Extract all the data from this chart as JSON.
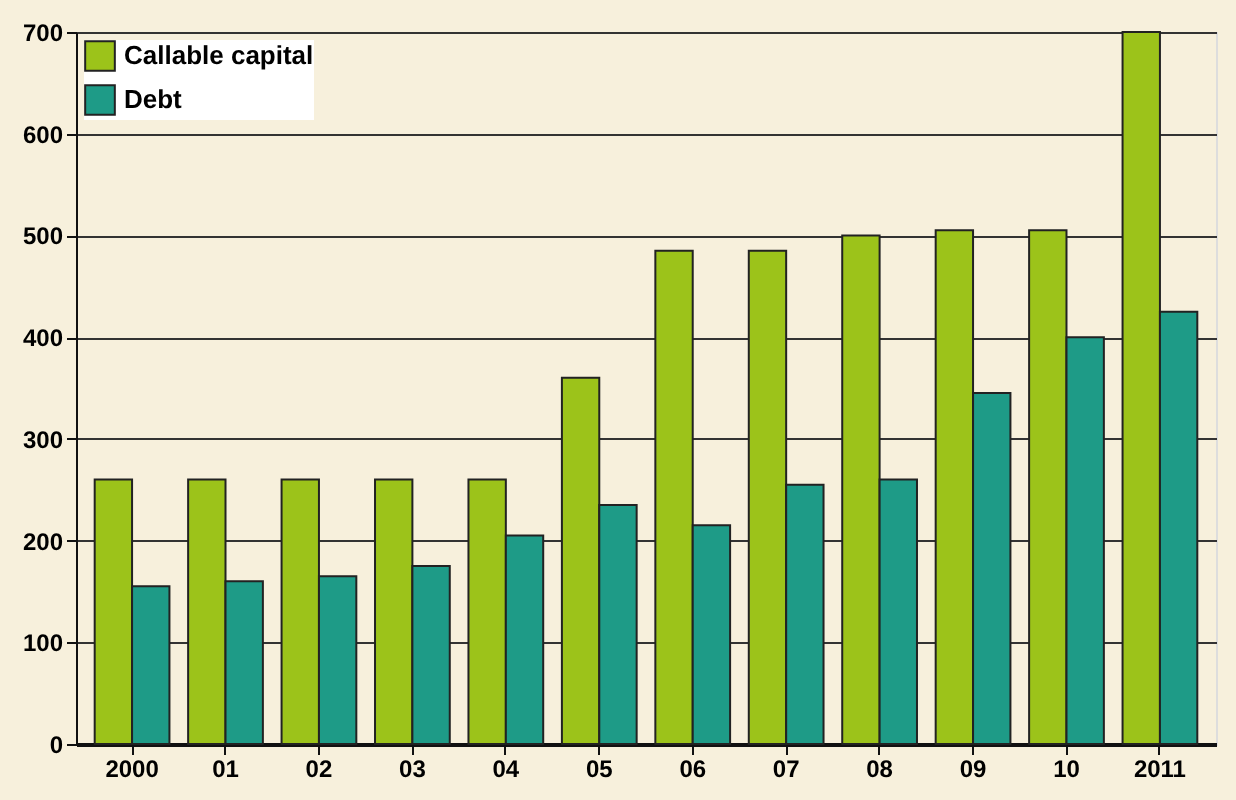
{
  "chart_data": {
    "type": "bar",
    "categories": [
      "2000",
      "01",
      "02",
      "03",
      "04",
      "05",
      "06",
      "07",
      "08",
      "09",
      "10",
      "2011"
    ],
    "series": [
      {
        "name": "Callable capital",
        "color": "#9cc31a",
        "values": [
          260,
          260,
          260,
          260,
          260,
          360,
          485,
          485,
          500,
          505,
          505,
          700
        ]
      },
      {
        "name": "Debt",
        "color": "#1e9b87",
        "values": [
          155,
          160,
          165,
          175,
          205,
          235,
          215,
          255,
          260,
          345,
          400,
          425
        ]
      }
    ],
    "ylim": [
      0,
      700
    ],
    "yticks": [
      0,
      100,
      200,
      300,
      400,
      500,
      600,
      700
    ],
    "grid": "y",
    "legend": "top left"
  }
}
